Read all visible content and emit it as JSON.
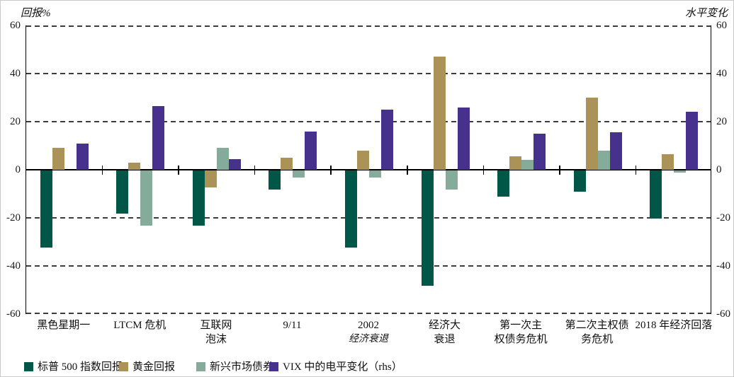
{
  "axis_titles": {
    "left": "回报%",
    "right": "水平变化"
  },
  "y_ticks": [
    60,
    40,
    20,
    0,
    -20,
    -40,
    -60
  ],
  "chart_data": {
    "type": "bar",
    "title": "",
    "xlabel": "",
    "ylabel_left": "回报%",
    "ylabel_right": "水平变化",
    "ylim": [
      -60,
      60
    ],
    "grid": "dashed-horizontal",
    "legend_position": "bottom",
    "categories": [
      {
        "name": "黑色星期一",
        "lines": [
          "黑色星期一"
        ]
      },
      {
        "name": "LTCM危机",
        "lines": [
          "LTCM 危机"
        ]
      },
      {
        "name": "互联网泡沫",
        "lines": [
          "互联网",
          "泡沫"
        ]
      },
      {
        "name": "9/11",
        "lines": [
          "9/11"
        ]
      },
      {
        "name": "2002经济衰退",
        "lines": [
          "2002",
          "经济衰退"
        ],
        "italic_line": 1
      },
      {
        "name": "经济大衰退",
        "lines": [
          "经济大",
          "衰退"
        ]
      },
      {
        "name": "第一次主权债务危机",
        "lines": [
          "第一次主",
          "权债务危机"
        ]
      },
      {
        "name": "第二次主权债务危机",
        "lines": [
          "第二次主权债",
          "务危机"
        ]
      },
      {
        "name": "2018年经济回落",
        "lines": [
          "2018 年经济回落"
        ]
      }
    ],
    "series": [
      {
        "name": "标普 500 指数回报",
        "color": "#015747",
        "axis": "left",
        "values": [
          -32,
          -18,
          -23,
          -8,
          -32,
          -48,
          -11,
          -9,
          -20
        ]
      },
      {
        "name": "黄金回报",
        "color": "#AB9257",
        "axis": "left",
        "values": [
          9,
          3,
          -7,
          5,
          8,
          47,
          5.5,
          30,
          6.5
        ]
      },
      {
        "name": "新兴市场债券",
        "color": "#85AB9A",
        "axis": "left",
        "values": [
          null,
          -23,
          9,
          -3,
          -3,
          -8,
          4,
          8,
          -1
        ]
      },
      {
        "name": "VIX 中的电平变化（rhs）",
        "color": "#46318C",
        "axis": "right",
        "values": [
          11,
          26.5,
          4.5,
          16,
          25,
          26,
          15,
          15.5,
          24
        ]
      }
    ]
  },
  "legend": [
    {
      "label": "标普 500 指数回报",
      "color": "#015747"
    },
    {
      "label": "黄金回报",
      "color": "#AB9257"
    },
    {
      "label": "新兴市场债券",
      "color": "#85AB9A"
    },
    {
      "label": "VIX 中的电平变化（rhs）",
      "color": "#46318C"
    }
  ]
}
